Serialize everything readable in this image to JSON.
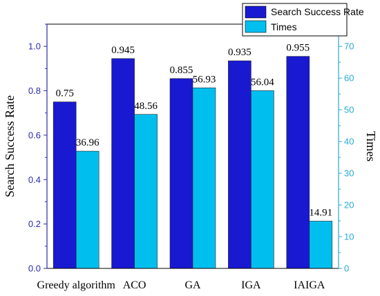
{
  "chart_data": {
    "type": "bar",
    "categories": [
      "Greedy algorithm",
      "ACO",
      "GA",
      "IGA",
      "IAIGA"
    ],
    "series": [
      {
        "name": "Search Success Rate",
        "values": [
          0.75,
          0.945,
          0.855,
          0.935,
          0.955
        ],
        "labels": [
          "0.75",
          "0.945",
          "0.855",
          "0.935",
          "0.955"
        ],
        "axis": "left",
        "color": "#1919d2"
      },
      {
        "name": "Times",
        "values": [
          36.96,
          48.56,
          56.93,
          56.04,
          14.91
        ],
        "labels": [
          "36.96",
          "48.56",
          "56.93",
          "56.04",
          "14.91"
        ],
        "axis": "right",
        "color": "#00bfef"
      }
    ],
    "ylabel": "Search Success Rate",
    "y2label": "Times",
    "ylim": [
      0,
      1.1
    ],
    "y2lim": [
      0,
      77
    ],
    "yticks": [
      "0.0",
      "0.2",
      "0.4",
      "0.6",
      "0.8",
      "1.0"
    ],
    "y2ticks": [
      "0",
      "10",
      "20",
      "30",
      "40",
      "50",
      "60",
      "70"
    ],
    "legend": "top-right",
    "grid": false,
    "colors": {
      "left_axis": "#2a2aa8",
      "right_axis": "#29a9cf"
    }
  }
}
